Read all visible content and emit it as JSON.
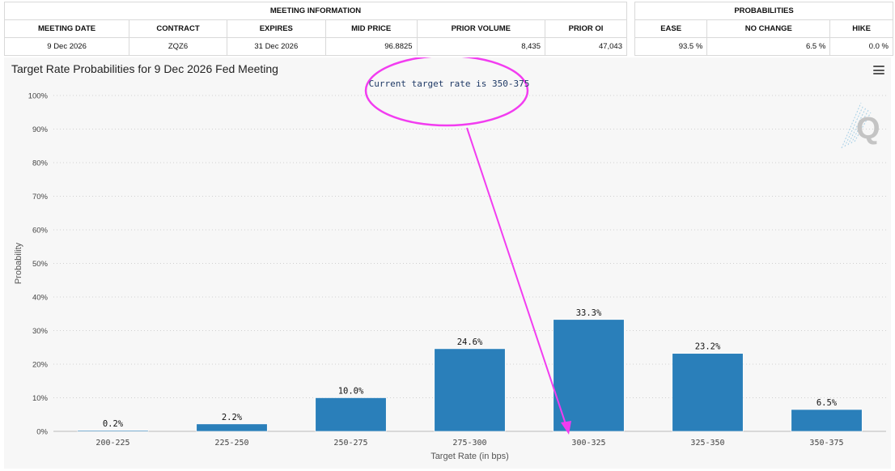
{
  "meeting_info": {
    "header": "MEETING INFORMATION",
    "columns": [
      "MEETING DATE",
      "CONTRACT",
      "EXPIRES",
      "MID PRICE",
      "PRIOR VOLUME",
      "PRIOR OI"
    ],
    "row": [
      "9 Dec 2026",
      "ZQZ6",
      "31 Dec 2026",
      "96.8825",
      "8,435",
      "47,043"
    ]
  },
  "probabilities": {
    "header": "PROBABILITIES",
    "columns": [
      "EASE",
      "NO CHANGE",
      "HIKE"
    ],
    "row": [
      "93.5 %",
      "6.5 %",
      "0.0 %"
    ]
  },
  "chart": {
    "title": "Target Rate Probabilities for 9 Dec 2026 Fed Meeting",
    "annotation": "Current target rate is 350-375",
    "watermark": "Q",
    "colors": {
      "bar": "#2a7fba",
      "annotation": "#f23cf0"
    }
  },
  "chart_data": {
    "type": "bar",
    "title": "Target Rate Probabilities for 9 Dec 2026 Fed Meeting",
    "xlabel": "Target Rate (in bps)",
    "ylabel": "Probability",
    "categories": [
      "200-225",
      "225-250",
      "250-275",
      "275-300",
      "300-325",
      "325-350",
      "350-375"
    ],
    "values": [
      0.2,
      2.2,
      10.0,
      24.6,
      33.3,
      23.2,
      6.5
    ],
    "data_labels": [
      "0.2%",
      "2.2%",
      "10.0%",
      "24.6%",
      "33.3%",
      "23.2%",
      "6.5%"
    ],
    "ylim": [
      0,
      100
    ],
    "yticks": [
      "0%",
      "10%",
      "20%",
      "30%",
      "40%",
      "50%",
      "60%",
      "70%",
      "80%",
      "90%",
      "100%"
    ],
    "grid": true
  }
}
